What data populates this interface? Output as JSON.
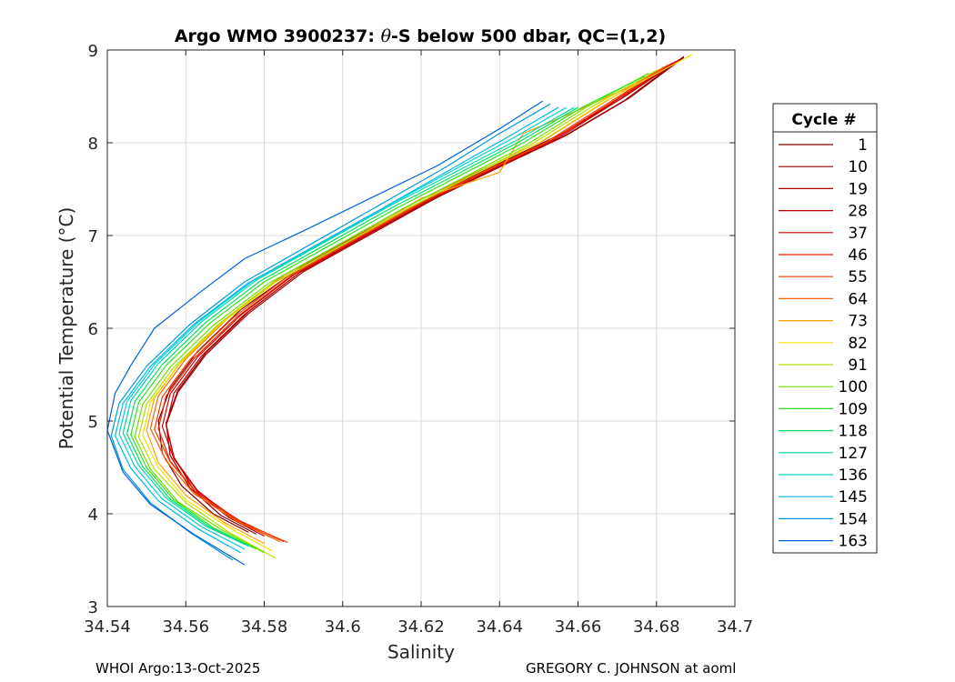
{
  "chart_data": {
    "type": "line",
    "title_prefix": "Argo WMO 3900237: ",
    "title_symbol": "θ",
    "title_suffix": "-S below 500 dbar,  QC=(1,2)",
    "xlabel": "Salinity",
    "ylabel": "Potential Temperature (°C)",
    "xlim": [
      34.54,
      34.7
    ],
    "ylim": [
      3,
      9
    ],
    "xticks": [
      "34.54",
      "34.56",
      "34.58",
      "34.6",
      "34.62",
      "34.64",
      "34.66",
      "34.68",
      "34.7"
    ],
    "yticks": [
      "3",
      "4",
      "5",
      "6",
      "7",
      "8",
      "9"
    ],
    "grid": true,
    "legend_title": "Cycle #",
    "legend_position": "outside-right",
    "series": [
      {
        "name": "1",
        "color": "#800000",
        "x": [
          34.576,
          34.567,
          34.559,
          34.554,
          34.553,
          34.556,
          34.563,
          34.574,
          34.589,
          34.606,
          34.624,
          34.641,
          34.656,
          34.672,
          34.686
        ],
        "y": [
          3.8,
          4.0,
          4.3,
          4.65,
          5.0,
          5.35,
          5.75,
          6.2,
          6.65,
          7.05,
          7.45,
          7.8,
          8.1,
          8.5,
          8.9
        ]
      },
      {
        "name": "10",
        "color": "#8b0000",
        "x": [
          34.578,
          34.569,
          34.561,
          34.556,
          34.555,
          34.558,
          34.565,
          34.576,
          34.59,
          34.607,
          34.625,
          34.642,
          34.657,
          34.673,
          34.687
        ],
        "y": [
          3.78,
          3.98,
          4.28,
          4.63,
          4.98,
          5.33,
          5.73,
          6.18,
          6.63,
          7.03,
          7.43,
          7.78,
          8.08,
          8.48,
          8.92
        ]
      },
      {
        "name": "19",
        "color": "#a50000",
        "x": [
          34.58,
          34.571,
          34.562,
          34.557,
          34.555,
          34.558,
          34.565,
          34.576,
          34.59,
          34.607,
          34.624,
          34.641,
          34.656,
          34.672,
          34.687
        ],
        "y": [
          3.76,
          3.96,
          4.26,
          4.61,
          4.96,
          5.31,
          5.71,
          6.16,
          6.61,
          7.01,
          7.41,
          7.76,
          8.06,
          8.46,
          8.93
        ]
      },
      {
        "name": "28",
        "color": "#c00000",
        "x": [
          34.582,
          34.572,
          34.563,
          34.557,
          34.555,
          34.557,
          34.564,
          34.575,
          34.589,
          34.606,
          34.623,
          34.64,
          34.655,
          34.67,
          34.686
        ],
        "y": [
          3.74,
          3.95,
          4.25,
          4.6,
          4.95,
          5.3,
          5.7,
          6.15,
          6.6,
          7.0,
          7.4,
          7.75,
          8.05,
          8.45,
          8.9
        ]
      },
      {
        "name": "37",
        "color": "#d80000",
        "x": [
          34.584,
          34.573,
          34.563,
          34.557,
          34.554,
          34.556,
          34.563,
          34.574,
          34.588,
          34.605,
          34.622,
          34.639,
          34.654,
          34.669,
          34.685
        ],
        "y": [
          3.72,
          3.94,
          4.24,
          4.59,
          4.94,
          5.29,
          5.69,
          6.14,
          6.59,
          6.99,
          7.39,
          7.74,
          8.04,
          8.44,
          8.88
        ]
      },
      {
        "name": "46",
        "color": "#e82000",
        "x": [
          34.585,
          34.574,
          34.563,
          34.556,
          34.553,
          34.555,
          34.562,
          34.573,
          34.587,
          34.604,
          34.621,
          34.638,
          34.653,
          34.668,
          34.684
        ],
        "y": [
          3.7,
          3.92,
          4.22,
          4.57,
          4.92,
          5.27,
          5.67,
          6.12,
          6.57,
          6.97,
          7.37,
          7.72,
          8.02,
          8.42,
          8.86
        ]
      },
      {
        "name": "55",
        "color": "#f04000",
        "x": [
          34.586,
          34.574,
          34.563,
          34.556,
          34.552,
          34.554,
          34.561,
          34.572,
          34.586,
          34.603,
          34.62,
          34.637,
          34.652,
          34.667,
          34.683
        ],
        "y": [
          3.69,
          3.91,
          4.21,
          4.56,
          4.91,
          5.26,
          5.66,
          6.11,
          6.56,
          6.96,
          7.36,
          7.71,
          8.01,
          8.41,
          8.84
        ]
      },
      {
        "name": "64",
        "color": "#f86000",
        "x": [
          34.584,
          34.573,
          34.562,
          34.555,
          34.551,
          34.553,
          34.56,
          34.571,
          34.585,
          34.602,
          34.619,
          34.636,
          34.651,
          34.666,
          34.682
        ],
        "y": [
          3.7,
          3.92,
          4.22,
          4.57,
          4.92,
          5.27,
          5.67,
          6.12,
          6.57,
          6.97,
          7.37,
          7.72,
          8.02,
          8.42,
          8.82
        ]
      },
      {
        "name": "73",
        "color": "#ffa000",
        "x": [
          34.58,
          34.57,
          34.56,
          34.553,
          34.55,
          34.552,
          34.559,
          34.57,
          34.584,
          34.601,
          34.618,
          34.62,
          34.64,
          34.646,
          34.66,
          34.676
        ],
        "y": [
          3.68,
          3.9,
          4.2,
          4.55,
          4.9,
          5.25,
          5.65,
          6.1,
          6.55,
          6.95,
          7.35,
          7.4,
          7.68,
          8.1,
          8.35,
          8.66
        ]
      },
      {
        "name": "82",
        "color": "#f0e000",
        "x": [
          34.582,
          34.571,
          34.56,
          34.553,
          34.549,
          34.551,
          34.558,
          34.569,
          34.583,
          34.6,
          34.617,
          34.634,
          34.65,
          34.667,
          34.689
        ],
        "y": [
          3.6,
          3.85,
          4.15,
          4.5,
          4.85,
          5.2,
          5.6,
          6.05,
          6.5,
          6.9,
          7.3,
          7.67,
          8.0,
          8.45,
          8.95
        ]
      },
      {
        "name": "91",
        "color": "#b0e000",
        "x": [
          34.583,
          34.571,
          34.56,
          34.552,
          34.548,
          34.55,
          34.557,
          34.568,
          34.582,
          34.599,
          34.616,
          34.633,
          34.648,
          34.664,
          34.68
        ],
        "y": [
          3.52,
          3.8,
          4.12,
          4.48,
          4.83,
          5.18,
          5.58,
          6.03,
          6.48,
          6.88,
          7.28,
          7.65,
          7.98,
          8.4,
          8.78
        ]
      },
      {
        "name": "100",
        "color": "#70e000",
        "x": [
          34.58,
          34.569,
          34.558,
          34.551,
          34.547,
          34.549,
          34.556,
          34.567,
          34.581,
          34.598,
          34.615,
          34.632,
          34.647,
          34.662,
          34.678
        ],
        "y": [
          3.58,
          3.83,
          4.13,
          4.48,
          4.83,
          5.18,
          5.58,
          6.03,
          6.48,
          6.88,
          7.28,
          7.65,
          7.98,
          8.38,
          8.75
        ]
      },
      {
        "name": "109",
        "color": "#30e020",
        "x": [
          34.578,
          34.567,
          34.557,
          34.55,
          34.546,
          34.548,
          34.555,
          34.566,
          34.58,
          34.597,
          34.614,
          34.631,
          34.646,
          34.661,
          34.677
        ],
        "y": [
          3.62,
          3.85,
          4.15,
          4.5,
          4.85,
          5.2,
          5.6,
          6.05,
          6.5,
          6.9,
          7.3,
          7.67,
          8.0,
          8.38,
          8.72
        ]
      },
      {
        "name": "118",
        "color": "#00e060",
        "x": [
          34.577,
          34.566,
          34.556,
          34.549,
          34.545,
          34.547,
          34.554,
          34.565,
          34.579,
          34.596,
          34.613,
          34.63,
          34.645,
          34.66
        ],
        "y": [
          3.64,
          3.86,
          4.16,
          4.51,
          4.86,
          5.21,
          5.61,
          6.06,
          6.51,
          6.91,
          7.31,
          7.68,
          8.01,
          8.38
        ]
      },
      {
        "name": "127",
        "color": "#00d8a8",
        "x": [
          34.576,
          34.565,
          34.555,
          34.548,
          34.544,
          34.546,
          34.553,
          34.564,
          34.578,
          34.595,
          34.612,
          34.629,
          34.644,
          34.659
        ],
        "y": [
          3.65,
          3.87,
          4.17,
          4.52,
          4.87,
          5.22,
          5.62,
          6.07,
          6.52,
          6.92,
          7.32,
          7.69,
          8.02,
          8.38
        ]
      },
      {
        "name": "136",
        "color": "#00d0d8",
        "x": [
          34.575,
          34.564,
          34.554,
          34.547,
          34.543,
          34.545,
          34.552,
          34.563,
          34.577,
          34.594,
          34.611,
          34.628,
          34.643,
          34.657
        ],
        "y": [
          3.62,
          3.86,
          4.16,
          4.51,
          4.86,
          5.21,
          5.61,
          6.06,
          6.51,
          6.91,
          7.31,
          7.7,
          8.04,
          8.38
        ]
      },
      {
        "name": "145",
        "color": "#00b8e8",
        "x": [
          34.574,
          34.563,
          34.553,
          34.546,
          34.542,
          34.544,
          34.551,
          34.562,
          34.576,
          34.593,
          34.61,
          34.627,
          34.642,
          34.655
        ],
        "y": [
          3.58,
          3.84,
          4.14,
          4.49,
          4.84,
          5.19,
          5.59,
          6.04,
          6.49,
          6.89,
          7.29,
          7.7,
          8.06,
          8.38
        ]
      },
      {
        "name": "154",
        "color": "#0098e0",
        "x": [
          34.572,
          34.561,
          34.551,
          34.544,
          34.541,
          34.543,
          34.55,
          34.561,
          34.575,
          34.592,
          34.609,
          34.626,
          34.64,
          34.653
        ],
        "y": [
          3.5,
          3.8,
          4.12,
          4.48,
          4.84,
          5.19,
          5.59,
          6.04,
          6.5,
          6.91,
          7.32,
          7.73,
          8.1,
          8.42
        ]
      },
      {
        "name": "163",
        "color": "#0060e0",
        "x": [
          34.575,
          34.562,
          34.551,
          34.544,
          34.54,
          34.542,
          34.546,
          34.552,
          34.564,
          34.575,
          34.59,
          34.607,
          34.624,
          34.64,
          34.651
        ],
        "y": [
          3.45,
          3.78,
          4.1,
          4.45,
          4.9,
          5.3,
          5.6,
          6.0,
          6.4,
          6.75,
          7.05,
          7.4,
          7.75,
          8.15,
          8.45
        ]
      }
    ]
  },
  "footer": {
    "left": "WHOI Argo:13-Oct-2025",
    "right": "GREGORY C. JOHNSON at aoml"
  }
}
